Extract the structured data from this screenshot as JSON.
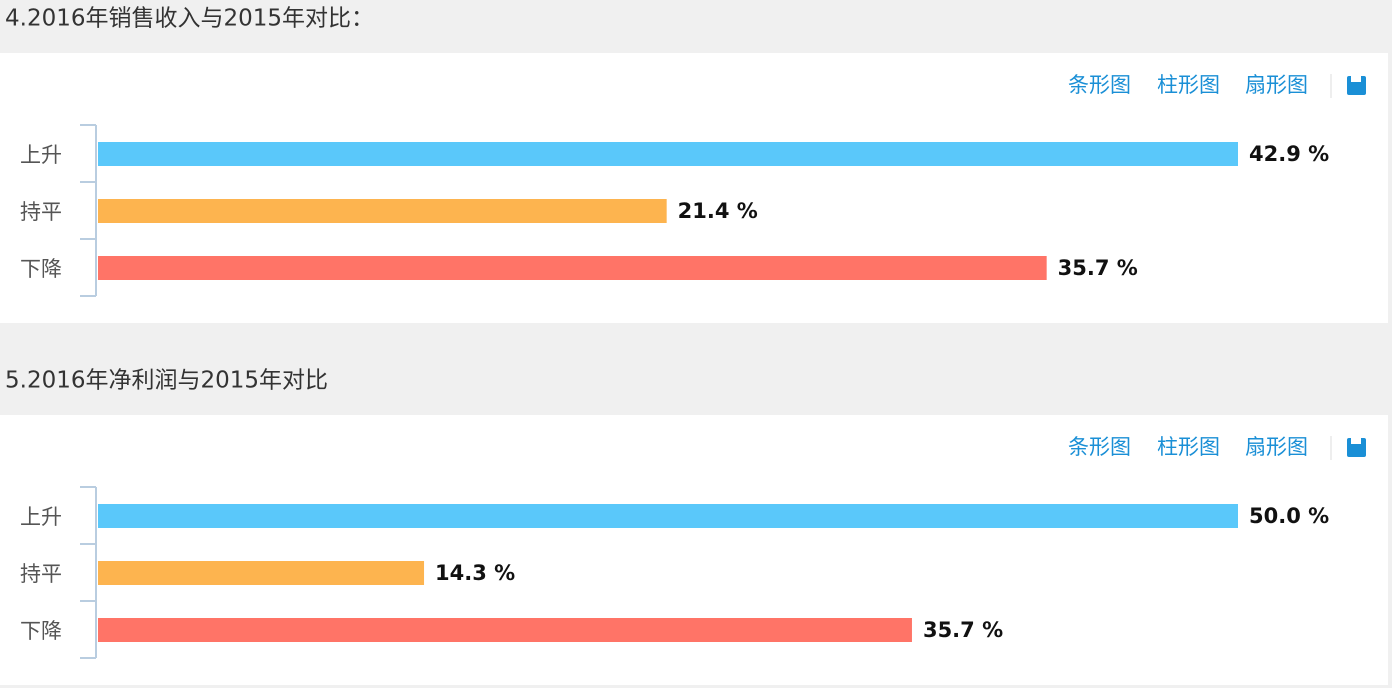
{
  "chart_data": [
    {
      "type": "bar",
      "orientation": "horizontal",
      "title": "4.2016年销售收入与2015年对比：",
      "toolbar": [
        "条形图",
        "柱形图",
        "扇形图"
      ],
      "categories": [
        "上升",
        "持平",
        "下降"
      ],
      "values": [
        42.9,
        21.4,
        35.7
      ],
      "value_labels": [
        "42.9 %",
        "21.4 %",
        "35.7 %"
      ],
      "colors": [
        "#5ac8fa",
        "#fdb44f",
        "#ff7467"
      ]
    },
    {
      "type": "bar",
      "orientation": "horizontal",
      "title": "5.2016年净利润与2015年对比",
      "toolbar": [
        "条形图",
        "柱形图",
        "扇形图"
      ],
      "categories": [
        "上升",
        "持平",
        "下降"
      ],
      "values": [
        50.0,
        14.3,
        35.7
      ],
      "value_labels": [
        "50.0 %",
        "14.3 %",
        "35.7 %"
      ],
      "colors": [
        "#5ac8fa",
        "#fdb44f",
        "#ff7467"
      ]
    }
  ]
}
